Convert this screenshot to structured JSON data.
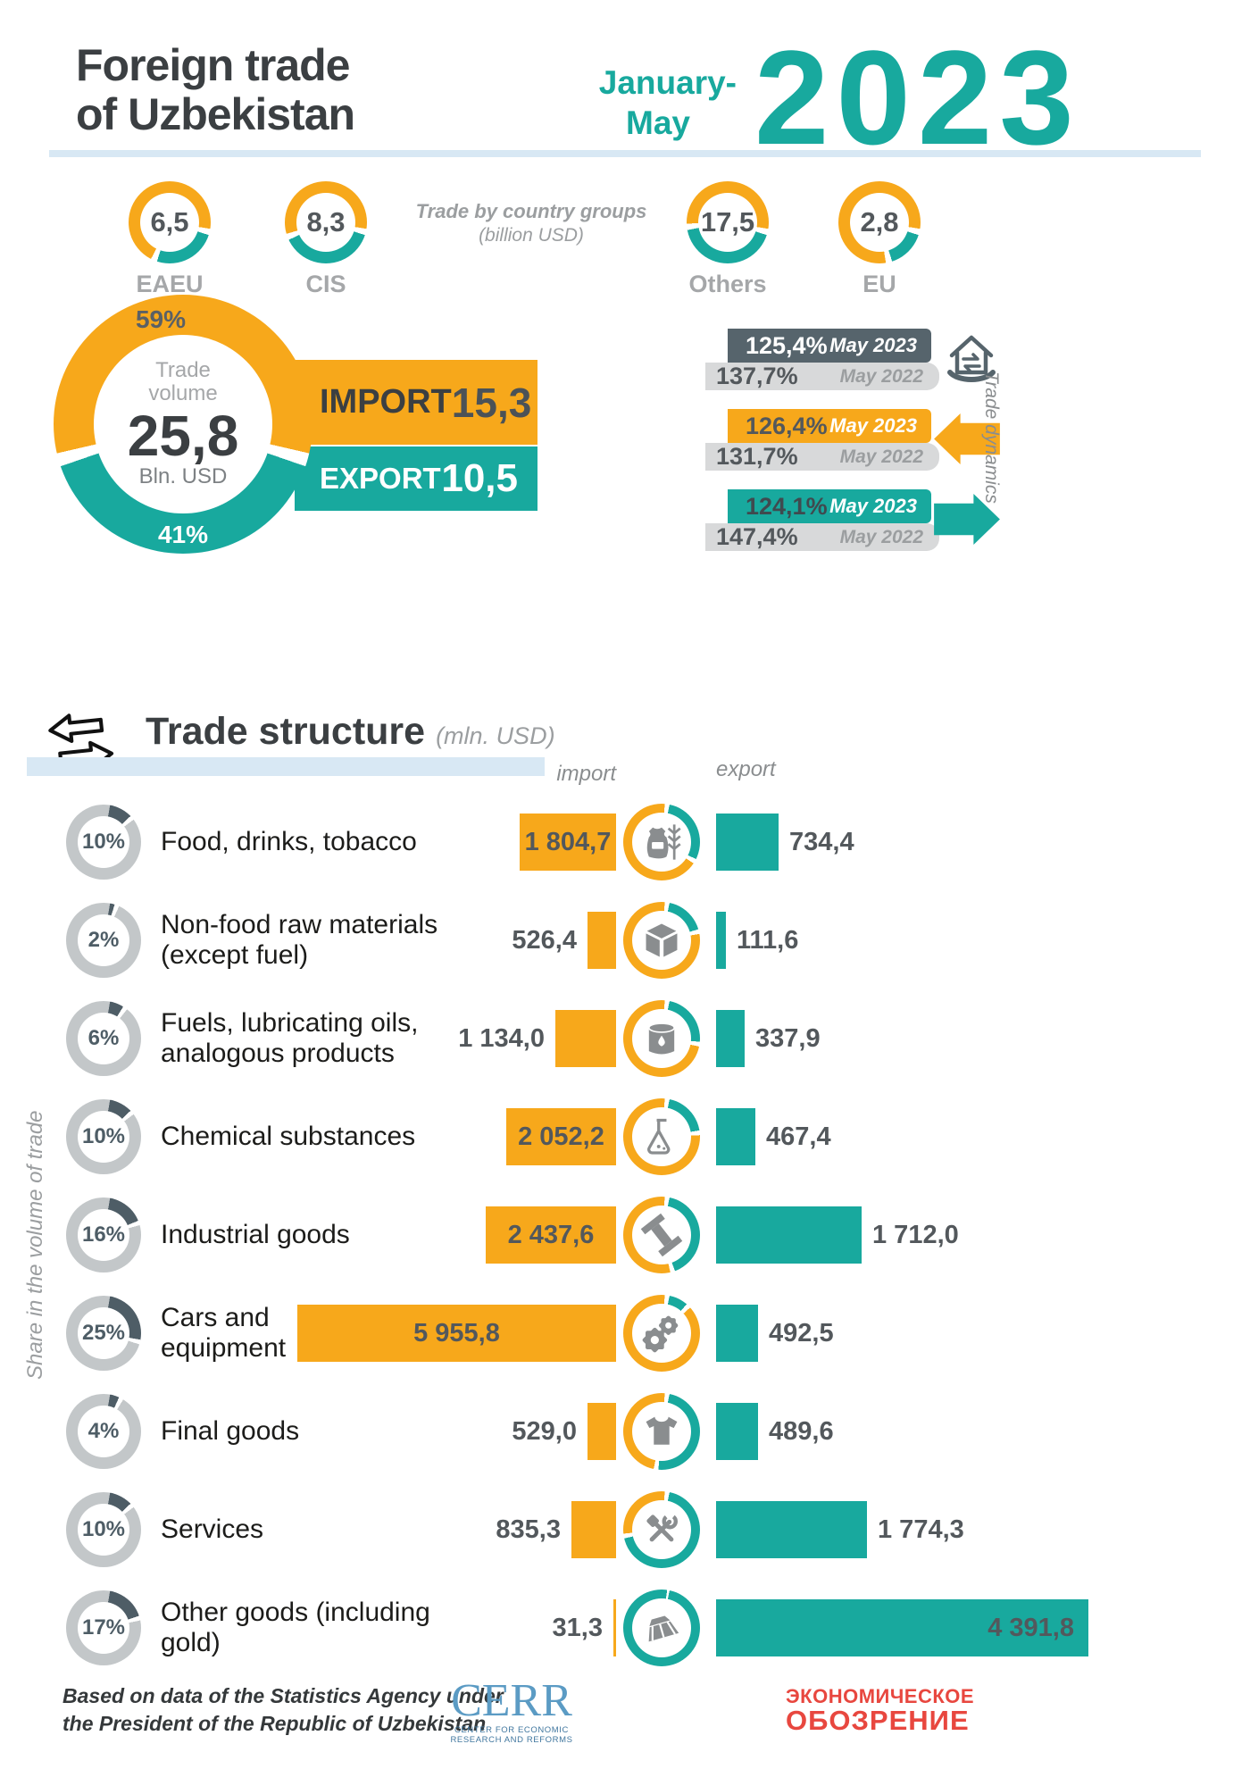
{
  "header": {
    "title": "Foreign trade\nof Uzbekistan",
    "period_line1": "January-",
    "period_line2": "May",
    "year": "2023"
  },
  "country_groups": {
    "caption_line1": "Trade by country groups",
    "caption_line2": "(billion USD)",
    "items": [
      {
        "label": "EAEU",
        "value": "6,5",
        "teal_share": 25
      },
      {
        "label": "CIS",
        "value": "8,3",
        "teal_share": 38
      },
      {
        "label": "Others",
        "value": "17,5",
        "teal_share": 42
      },
      {
        "label": "EU",
        "value": "2,8",
        "teal_share": 15
      }
    ]
  },
  "volume": {
    "center_label": "Trade\nvolume",
    "value": "25,8",
    "unit": "Bln. USD",
    "import_pct": "59%",
    "export_pct": "41%",
    "import_label": "IMPORT",
    "import_value": "15,3",
    "export_label": "EXPORT",
    "export_value": "10,5"
  },
  "dynamics": {
    "side_label": "Trade dynamics",
    "rows": [
      {
        "kind": "volume",
        "icon": "house-arrows",
        "pct_2023": "125,4%",
        "label_2023": "May 2023",
        "pct_2022": "137,7%",
        "label_2022": "May 2022"
      },
      {
        "kind": "import",
        "icon": "arrow-left",
        "pct_2023": "126,4%",
        "label_2023": "May 2023",
        "pct_2022": "131,7%",
        "label_2022": "May 2022"
      },
      {
        "kind": "export",
        "icon": "arrow-right",
        "pct_2023": "124,1%",
        "label_2023": "May 2023",
        "pct_2022": "147,4%",
        "label_2022": "May 2022"
      }
    ]
  },
  "structure": {
    "title": "Trade structure",
    "unit": "(mln. USD)",
    "import_header": "import",
    "export_header": "export",
    "side_label": "Share in the volume of trade",
    "rows": [
      {
        "share": "10%",
        "share_val": 10,
        "label": "Food, drinks, tobacco",
        "icon": "food-sack",
        "import_text": "1 804,7",
        "import_val": 1804.7,
        "import_inside": true,
        "export_text": "734,4",
        "export_val": 734.4,
        "export_inside": false
      },
      {
        "share": "2%",
        "share_val": 2,
        "label": "Non-food raw materials\n(except fuel)",
        "icon": "raw-materials",
        "import_text": "526,4",
        "import_val": 526.4,
        "import_inside": false,
        "export_text": "111,6",
        "export_val": 111.6,
        "export_inside": false
      },
      {
        "share": "6%",
        "share_val": 6,
        "label": "Fuels, lubricating oils,\nanalogous products",
        "icon": "fuel-barrel",
        "import_text": "1 134,0",
        "import_val": 1134.0,
        "import_inside": false,
        "export_text": "337,9",
        "export_val": 337.9,
        "export_inside": false
      },
      {
        "share": "10%",
        "share_val": 10,
        "label": "Chemical substances",
        "icon": "chemical-flask",
        "import_text": "2 052,2",
        "import_val": 2052.2,
        "import_inside": true,
        "export_text": "467,4",
        "export_val": 467.4,
        "export_inside": false
      },
      {
        "share": "16%",
        "share_val": 16,
        "label": "Industrial goods",
        "icon": "steel-beam",
        "import_text": "2 437,6",
        "import_val": 2437.6,
        "import_inside": true,
        "export_text": "1 712,0",
        "export_val": 1712.0,
        "export_inside": false
      },
      {
        "share": "25%",
        "share_val": 25,
        "label": "Cars and\nequipment",
        "icon": "gears",
        "import_text": "5 955,8",
        "import_val": 5955.8,
        "import_inside": true,
        "export_text": "492,5",
        "export_val": 492.5,
        "export_inside": false
      },
      {
        "share": "4%",
        "share_val": 4,
        "label": "Final goods",
        "icon": "t-shirt",
        "import_text": "529,0",
        "import_val": 529.0,
        "import_inside": false,
        "export_text": "489,6",
        "export_val": 489.6,
        "export_inside": false
      },
      {
        "share": "10%",
        "share_val": 10,
        "label": "Services",
        "icon": "tools",
        "import_text": "835,3",
        "import_val": 835.3,
        "import_inside": false,
        "export_text": "1 774,3",
        "export_val": 1774.3,
        "export_inside": false
      },
      {
        "share": "17%",
        "share_val": 17,
        "label": "Other goods (including gold)",
        "icon": "gold-ingot",
        "import_text": "31,3",
        "import_val": 31.3,
        "import_inside": false,
        "export_text": "4 391,8",
        "export_val": 4391.8,
        "export_inside": true
      }
    ]
  },
  "footer": {
    "source": "Based on data of the Statistics Agency under\nthe President of the Republic of Uzbekistan",
    "cerr_name": "CERR",
    "cerr_caption": "CENTER FOR ECONOMIC\nRESEARCH AND REFORMS",
    "magazine_line1": "ЭКОНОМИЧЕСКОЕ",
    "magazine_line2": "ОБОЗРЕНИЕ"
  },
  "colors": {
    "yellow": "#F7A81B",
    "teal": "#18A99E",
    "dark": "#3B3F42",
    "slate": "#56646C",
    "gray_text": "#A5A7A9",
    "light_gray_bar": "#D8D9DA",
    "light_blue": "#D8E8F4",
    "red": "#E8473F",
    "icon_gray": "#8A8D8F"
  },
  "chart_data": [
    {
      "type": "pie",
      "title": "Trade by country groups (billion USD)",
      "categories": [
        "EAEU",
        "CIS",
        "Others",
        "EU"
      ],
      "values": [
        6.5,
        8.3,
        17.5,
        2.8
      ]
    },
    {
      "type": "pie",
      "title": "Trade volume 25,8 Bln. USD",
      "categories": [
        "Import",
        "Export"
      ],
      "values": [
        59,
        41
      ],
      "annotations": {
        "import_bln_usd": 15.3,
        "export_bln_usd": 10.5
      }
    },
    {
      "type": "bar",
      "title": "Trade dynamics (%, year over year)",
      "categories": [
        "Trade volume",
        "Import",
        "Export"
      ],
      "series": [
        {
          "name": "May 2023",
          "values": [
            125.4,
            126.4,
            124.1
          ]
        },
        {
          "name": "May 2022",
          "values": [
            137.7,
            131.7,
            147.4
          ]
        }
      ]
    },
    {
      "type": "bar",
      "title": "Trade structure (mln. USD)",
      "categories": [
        "Food, drinks, tobacco",
        "Non-food raw materials (except fuel)",
        "Fuels, lubricating oils, analogous products",
        "Chemical substances",
        "Industrial goods",
        "Cars and equipment",
        "Final goods",
        "Services",
        "Other goods (including gold)"
      ],
      "series": [
        {
          "name": "import",
          "values": [
            1804.7,
            526.4,
            1134.0,
            2052.2,
            2437.6,
            5955.8,
            529.0,
            835.3,
            31.3
          ]
        },
        {
          "name": "export",
          "values": [
            734.4,
            111.6,
            337.9,
            467.4,
            1712.0,
            492.5,
            489.6,
            1774.3,
            4391.8
          ]
        }
      ],
      "share_in_volume_pct": [
        10,
        2,
        6,
        10,
        16,
        25,
        4,
        10,
        17
      ],
      "ylabel": "Share in the volume of trade"
    }
  ]
}
